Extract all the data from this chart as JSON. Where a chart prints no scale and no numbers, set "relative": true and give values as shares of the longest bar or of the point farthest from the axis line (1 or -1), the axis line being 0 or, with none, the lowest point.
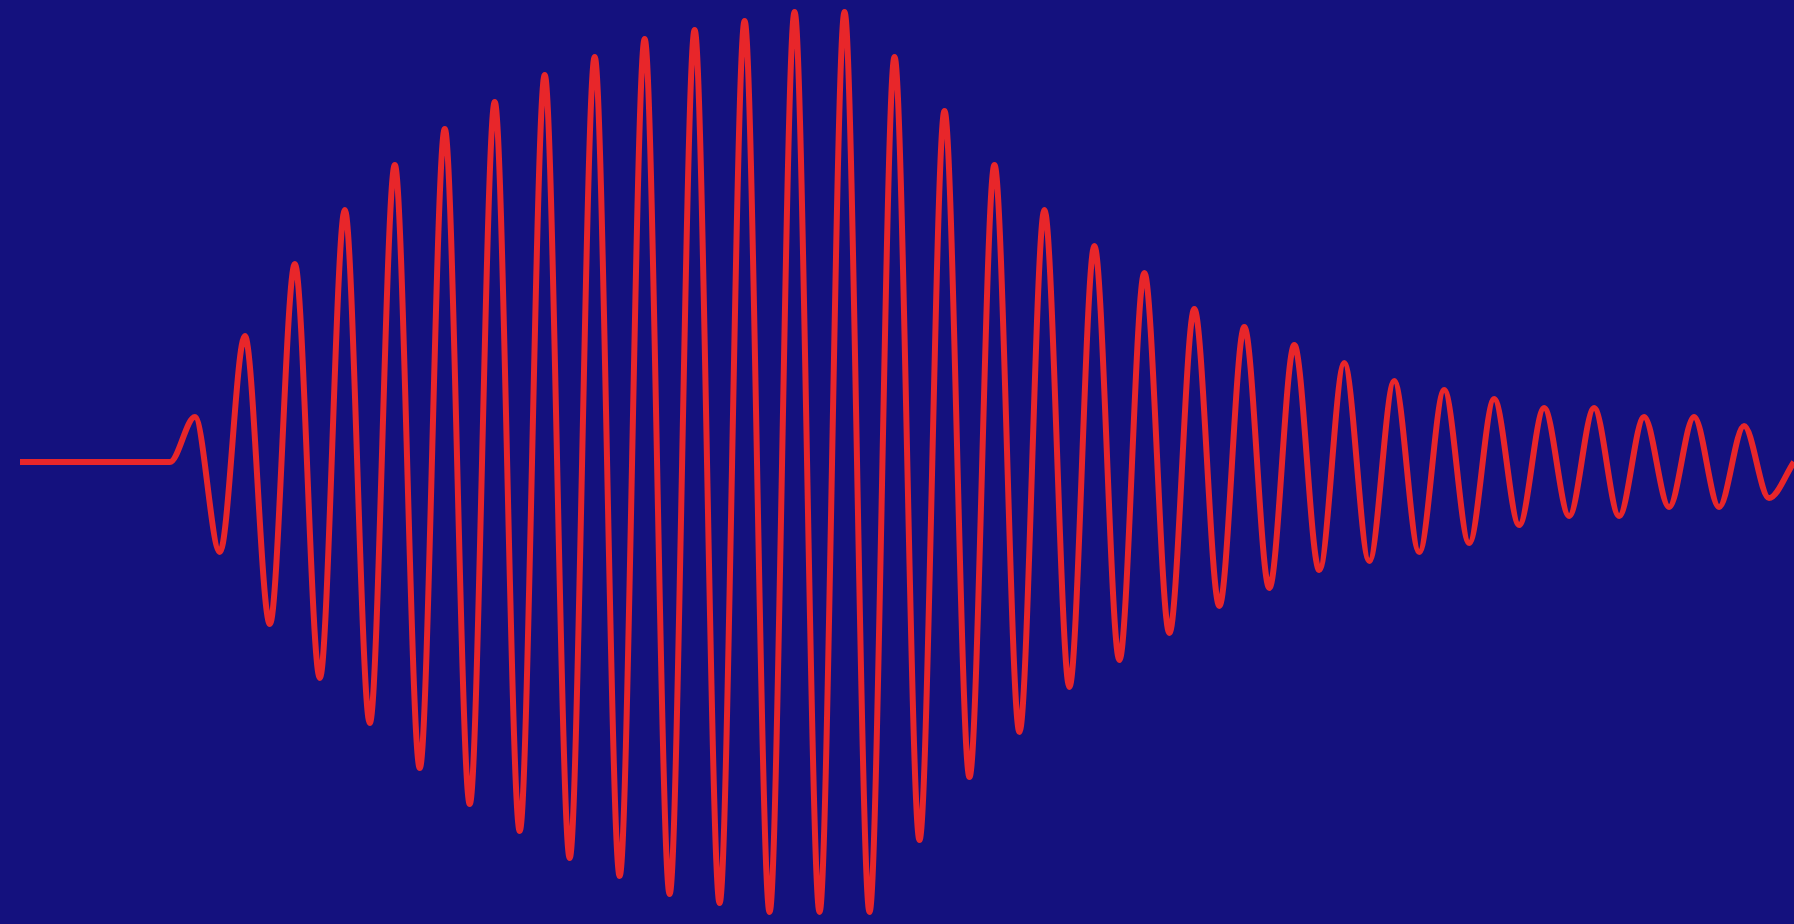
{
  "chart_data": {
    "type": "line",
    "relative": true,
    "marker": "none",
    "categories": [
      null,
      null,
      null,
      null,
      null,
      null,
      null,
      null,
      null,
      null,
      null,
      null,
      null,
      null,
      null,
      null,
      null,
      null,
      null,
      null,
      null,
      null,
      null,
      null,
      null,
      null,
      null,
      null,
      null,
      null,
      null,
      null,
      null,
      null,
      null,
      null,
      null,
      null,
      null,
      null,
      null,
      null,
      null,
      null,
      null,
      null,
      null,
      null,
      null,
      null,
      null,
      null,
      null,
      null,
      null,
      null,
      null,
      null,
      null,
      null,
      null,
      null,
      null,
      null,
      null,
      null,
      null,
      null,
      null,
      null,
      null,
      null
    ],
    "series": [
      {
        "color": "#e8262a",
        "values": [
          0.5,
          0.5,
          0.5,
          0.5,
          0.5,
          0.5,
          0.5,
          0.55,
          0.4,
          0.64,
          0.32,
          0.72,
          0.26,
          0.78,
          0.21,
          0.83,
          0.16,
          0.87,
          0.12,
          0.9,
          0.09,
          0.93,
          0.06,
          0.95,
          0.04,
          0.97,
          0.02,
          0.98,
          0.01,
          0.99,
          0.0,
          1.0,
          0.0,
          1.0,
          0.0,
          0.95,
          0.08,
          0.89,
          0.15,
          0.83,
          0.2,
          0.78,
          0.25,
          0.74,
          0.28,
          0.71,
          0.31,
          0.67,
          0.34,
          0.65,
          0.36,
          0.63,
          0.38,
          0.61,
          0.39,
          0.59,
          0.4,
          0.58,
          0.41,
          0.57,
          0.43,
          0.56,
          0.44,
          0.56,
          0.44,
          0.55,
          0.45,
          0.55,
          0.45,
          0.54,
          0.46,
          0.5
        ]
      }
    ]
  }
}
